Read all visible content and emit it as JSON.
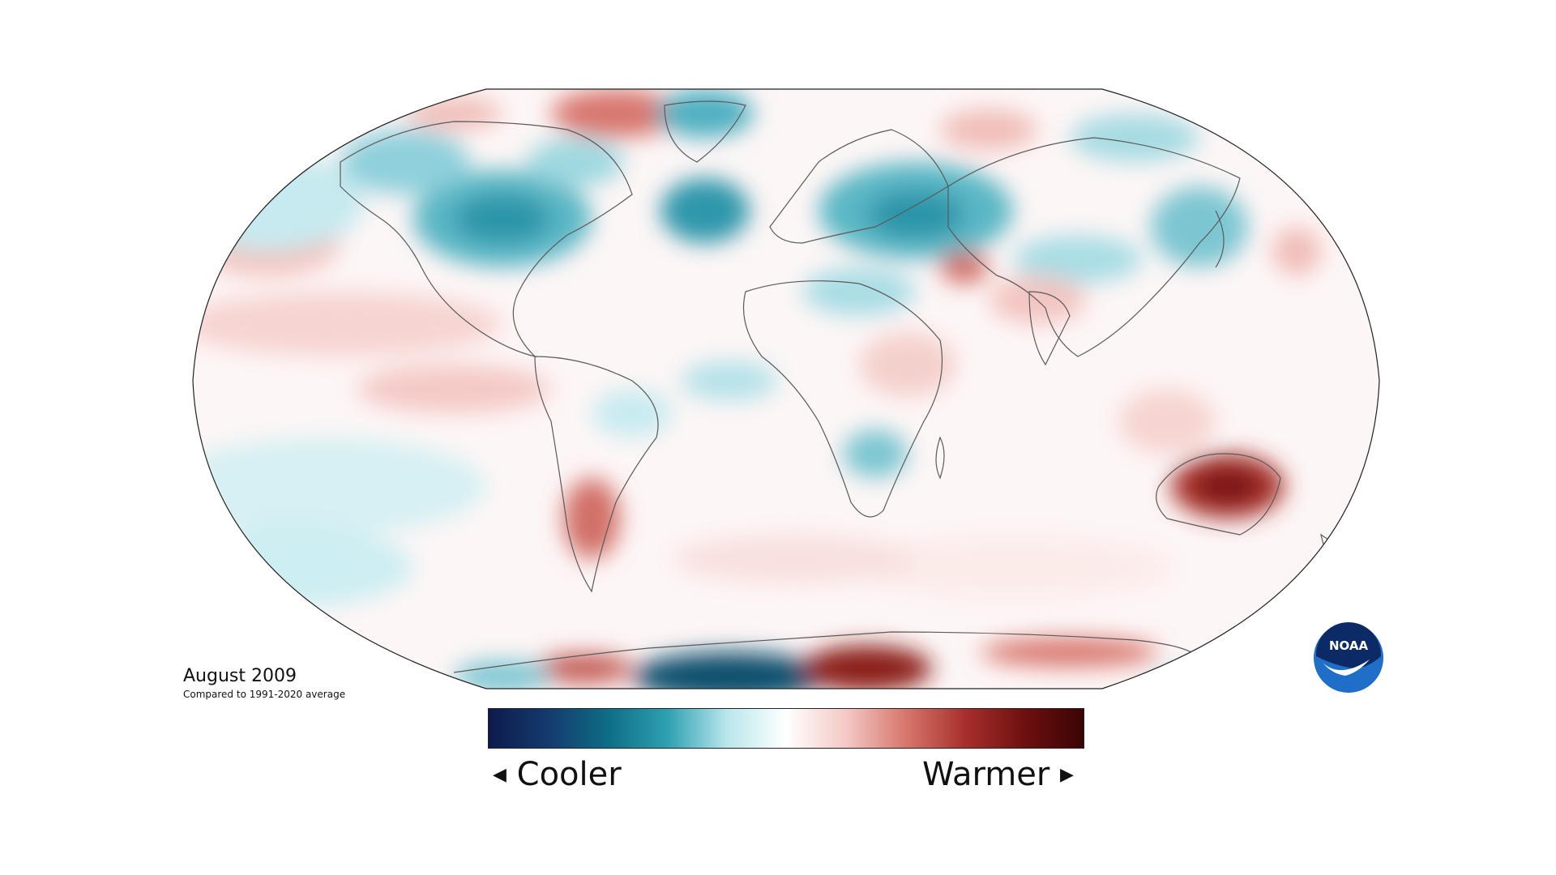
{
  "map": {
    "projection": "Robinson",
    "title": "August 2009",
    "subtitle": "Compared to 1991-2020 average"
  },
  "legend": {
    "cooler_label": "Cooler",
    "warmer_label": "Warmer",
    "left_arrow": "◀",
    "right_arrow": "▶",
    "colors": [
      "#0d1b4c",
      "#143a6e",
      "#0e6d86",
      "#2da0b0",
      "#b9e6ec",
      "#ffffff",
      "#f4c9c6",
      "#d8776e",
      "#a8302c",
      "#6e1010",
      "#3a0404"
    ]
  },
  "logo": {
    "text": "NOAA",
    "colors": {
      "outer": "#1f6fc9",
      "top": "#0b2a66",
      "bird": "#ffffff"
    }
  },
  "anomaly_colors": {
    "warm_strong": "#8a1a18",
    "warm": "#d2736c",
    "warm_light": "#f3c5c1",
    "cool_strong": "#0d4f6d",
    "cool": "#2b94a8",
    "cool_light": "#bfe8ee",
    "neutral": "#ffffff"
  }
}
